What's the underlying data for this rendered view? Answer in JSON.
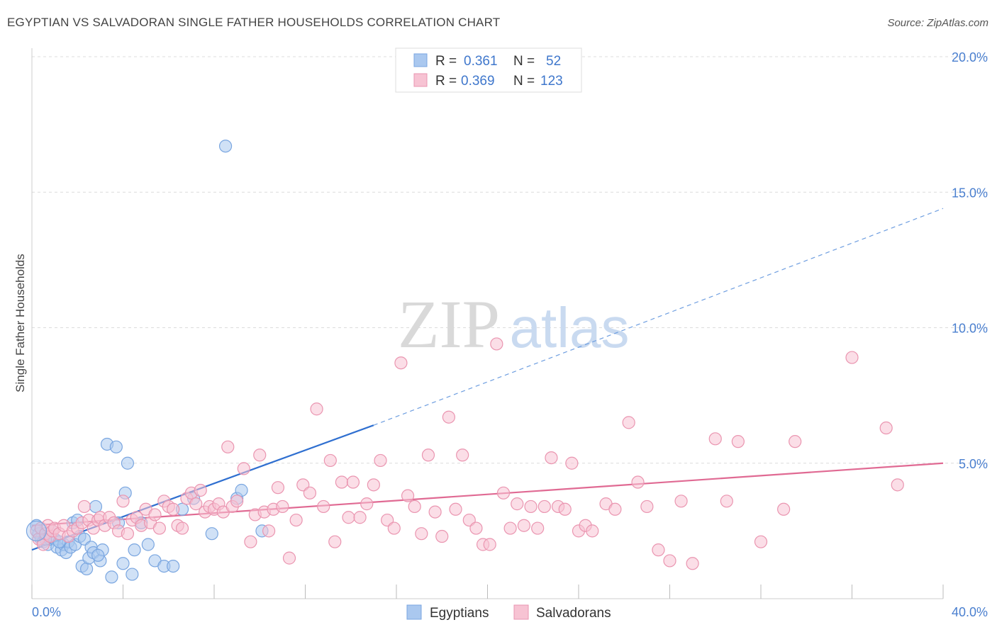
{
  "title": "EGYPTIAN VS SALVADORAN SINGLE FATHER HOUSEHOLDS CORRELATION CHART",
  "source": "Source: ZipAtlas.com",
  "watermark": {
    "zip": "ZIP",
    "atlas": "atlas"
  },
  "legend_top": [
    {
      "r_label": "R =",
      "r_value": "0.361",
      "n_label": "N =",
      "n_value": "52",
      "color": "#aac8ef",
      "stroke": "#7aa6e0"
    },
    {
      "r_label": "R =",
      "r_value": "0.369",
      "n_label": "N =",
      "n_value": "123",
      "color": "#f7c3d3",
      "stroke": "#ea95b0"
    }
  ],
  "legend_bottom": [
    {
      "label": "Egyptians",
      "color": "#aac8ef",
      "stroke": "#7aa6e0"
    },
    {
      "label": "Salvadorans",
      "color": "#f7c3d3",
      "stroke": "#ea95b0"
    }
  ],
  "chart_data": {
    "type": "scatter",
    "title": "EGYPTIAN VS SALVADORAN SINGLE FATHER HOUSEHOLDS CORRELATION CHART",
    "xlabel": "",
    "ylabel": "Single Father Households",
    "xlim": [
      0,
      40
    ],
    "ylim": [
      0,
      20
    ],
    "x_tick_labels": [
      {
        "value": 0,
        "label": "0.0%"
      },
      {
        "value": 40,
        "label": "40.0%"
      }
    ],
    "y_tick_labels": [
      {
        "value": 5,
        "label": "5.0%"
      },
      {
        "value": 10,
        "label": "10.0%"
      },
      {
        "value": 15,
        "label": "15.0%"
      },
      {
        "value": 20,
        "label": "20.0%"
      }
    ],
    "grid": "horizontal dashed",
    "legend_position": "top-center",
    "series": [
      {
        "name": "Egyptians",
        "color": "#7aa6e0",
        "fill": "#aac8ef",
        "trend": {
          "x0": 0,
          "y0": 1.8,
          "x1": 15.0,
          "y1": 6.4,
          "dash_to_x": 40,
          "dash_to_y": 14.4,
          "color": "#2f6fd0"
        },
        "points": [
          [
            0.2,
            2.7
          ],
          [
            0.3,
            2.4
          ],
          [
            0.4,
            2.2
          ],
          [
            0.5,
            2.1
          ],
          [
            0.6,
            2.3
          ],
          [
            0.7,
            2.0
          ],
          [
            0.8,
            2.2
          ],
          [
            0.9,
            2.5
          ],
          [
            1.0,
            2.2
          ],
          [
            1.1,
            1.9
          ],
          [
            1.3,
            1.8
          ],
          [
            1.4,
            2.0
          ],
          [
            1.5,
            1.7
          ],
          [
            1.6,
            2.1
          ],
          [
            1.7,
            1.9
          ],
          [
            1.8,
            2.8
          ],
          [
            1.9,
            2.0
          ],
          [
            2.0,
            2.9
          ],
          [
            2.1,
            2.3
          ],
          [
            2.2,
            1.2
          ],
          [
            2.3,
            2.2
          ],
          [
            2.4,
            1.1
          ],
          [
            2.5,
            1.5
          ],
          [
            2.6,
            1.9
          ],
          [
            2.7,
            1.7
          ],
          [
            2.8,
            3.4
          ],
          [
            3.0,
            1.4
          ],
          [
            3.1,
            1.8
          ],
          [
            3.3,
            5.7
          ],
          [
            3.5,
            0.8
          ],
          [
            3.7,
            5.6
          ],
          [
            3.8,
            2.8
          ],
          [
            4.0,
            1.3
          ],
          [
            4.1,
            3.9
          ],
          [
            4.2,
            5.0
          ],
          [
            4.4,
            0.9
          ],
          [
            4.5,
            1.8
          ],
          [
            4.8,
            2.8
          ],
          [
            5.1,
            2.0
          ],
          [
            5.4,
            1.4
          ],
          [
            5.8,
            1.2
          ],
          [
            6.2,
            1.2
          ],
          [
            6.6,
            3.3
          ],
          [
            7.1,
            3.7
          ],
          [
            7.9,
            2.4
          ],
          [
            8.5,
            16.7
          ],
          [
            9.0,
            3.7
          ],
          [
            9.2,
            4.0
          ],
          [
            10.1,
            2.5
          ],
          [
            0.6,
            2.2
          ],
          [
            1.2,
            2.1
          ],
          [
            2.9,
            1.6
          ]
        ]
      },
      {
        "name": "Salvadorans",
        "color": "#ea95b0",
        "fill": "#f7c3d3",
        "trend": {
          "x0": 0,
          "y0": 2.7,
          "x1": 40,
          "y1": 5.0,
          "color": "#e06a93"
        },
        "points": [
          [
            0.2,
            2.5
          ],
          [
            0.3,
            2.2
          ],
          [
            0.4,
            2.6
          ],
          [
            0.5,
            2.0
          ],
          [
            0.6,
            2.4
          ],
          [
            0.7,
            2.7
          ],
          [
            0.8,
            2.3
          ],
          [
            0.9,
            2.5
          ],
          [
            1.0,
            2.6
          ],
          [
            1.2,
            2.4
          ],
          [
            1.4,
            2.7
          ],
          [
            1.6,
            2.3
          ],
          [
            1.8,
            2.5
          ],
          [
            2.0,
            2.6
          ],
          [
            2.2,
            2.8
          ],
          [
            2.3,
            3.4
          ],
          [
            2.5,
            2.9
          ],
          [
            2.7,
            2.6
          ],
          [
            2.9,
            2.9
          ],
          [
            3.0,
            3.0
          ],
          [
            3.2,
            2.7
          ],
          [
            3.4,
            3.0
          ],
          [
            3.6,
            2.8
          ],
          [
            3.8,
            2.5
          ],
          [
            4.0,
            3.6
          ],
          [
            4.2,
            2.4
          ],
          [
            4.4,
            2.9
          ],
          [
            4.6,
            3.0
          ],
          [
            4.8,
            2.7
          ],
          [
            5.0,
            3.3
          ],
          [
            5.2,
            2.8
          ],
          [
            5.4,
            3.1
          ],
          [
            5.6,
            2.6
          ],
          [
            5.8,
            3.6
          ],
          [
            6.0,
            3.4
          ],
          [
            6.2,
            3.3
          ],
          [
            6.4,
            2.7
          ],
          [
            6.6,
            2.6
          ],
          [
            6.8,
            3.7
          ],
          [
            7.0,
            3.9
          ],
          [
            7.2,
            3.5
          ],
          [
            7.4,
            4.0
          ],
          [
            7.6,
            3.2
          ],
          [
            7.8,
            3.4
          ],
          [
            8.0,
            3.3
          ],
          [
            8.2,
            3.5
          ],
          [
            8.4,
            3.2
          ],
          [
            8.6,
            5.6
          ],
          [
            8.8,
            3.4
          ],
          [
            9.0,
            3.6
          ],
          [
            9.3,
            4.8
          ],
          [
            9.6,
            2.1
          ],
          [
            9.8,
            3.1
          ],
          [
            10.0,
            5.3
          ],
          [
            10.2,
            3.2
          ],
          [
            10.4,
            2.5
          ],
          [
            10.6,
            3.3
          ],
          [
            10.8,
            4.1
          ],
          [
            11.0,
            3.4
          ],
          [
            11.3,
            1.5
          ],
          [
            11.6,
            2.9
          ],
          [
            11.9,
            4.2
          ],
          [
            12.2,
            3.9
          ],
          [
            12.5,
            7.0
          ],
          [
            12.8,
            3.4
          ],
          [
            13.1,
            5.1
          ],
          [
            13.3,
            2.1
          ],
          [
            13.6,
            4.3
          ],
          [
            13.9,
            3.0
          ],
          [
            14.1,
            4.3
          ],
          [
            14.4,
            3.0
          ],
          [
            14.7,
            3.5
          ],
          [
            15.0,
            4.2
          ],
          [
            15.3,
            5.1
          ],
          [
            15.6,
            2.9
          ],
          [
            15.9,
            2.6
          ],
          [
            16.2,
            8.7
          ],
          [
            16.5,
            3.8
          ],
          [
            16.8,
            3.4
          ],
          [
            17.1,
            2.4
          ],
          [
            17.4,
            5.3
          ],
          [
            17.7,
            3.2
          ],
          [
            18.0,
            2.3
          ],
          [
            18.3,
            6.7
          ],
          [
            18.6,
            3.3
          ],
          [
            18.9,
            5.3
          ],
          [
            19.2,
            2.9
          ],
          [
            19.5,
            2.6
          ],
          [
            19.8,
            2.0
          ],
          [
            20.1,
            2.0
          ],
          [
            20.4,
            9.4
          ],
          [
            20.7,
            3.9
          ],
          [
            21.0,
            2.6
          ],
          [
            21.3,
            3.5
          ],
          [
            21.6,
            2.7
          ],
          [
            21.9,
            3.4
          ],
          [
            22.2,
            2.6
          ],
          [
            22.5,
            3.4
          ],
          [
            22.8,
            5.2
          ],
          [
            23.1,
            3.4
          ],
          [
            23.4,
            3.3
          ],
          [
            23.7,
            5.0
          ],
          [
            24.0,
            2.5
          ],
          [
            24.3,
            2.7
          ],
          [
            24.6,
            2.5
          ],
          [
            25.2,
            3.5
          ],
          [
            25.6,
            3.3
          ],
          [
            26.2,
            6.5
          ],
          [
            26.6,
            4.3
          ],
          [
            27.0,
            3.4
          ],
          [
            27.5,
            1.8
          ],
          [
            28.0,
            1.4
          ],
          [
            28.5,
            3.6
          ],
          [
            29.0,
            1.3
          ],
          [
            30.0,
            5.9
          ],
          [
            30.5,
            3.6
          ],
          [
            31.0,
            5.8
          ],
          [
            32.0,
            2.1
          ],
          [
            33.0,
            3.3
          ],
          [
            33.5,
            5.8
          ],
          [
            36.0,
            8.9
          ],
          [
            37.5,
            6.3
          ],
          [
            38.0,
            4.2
          ]
        ]
      }
    ]
  }
}
